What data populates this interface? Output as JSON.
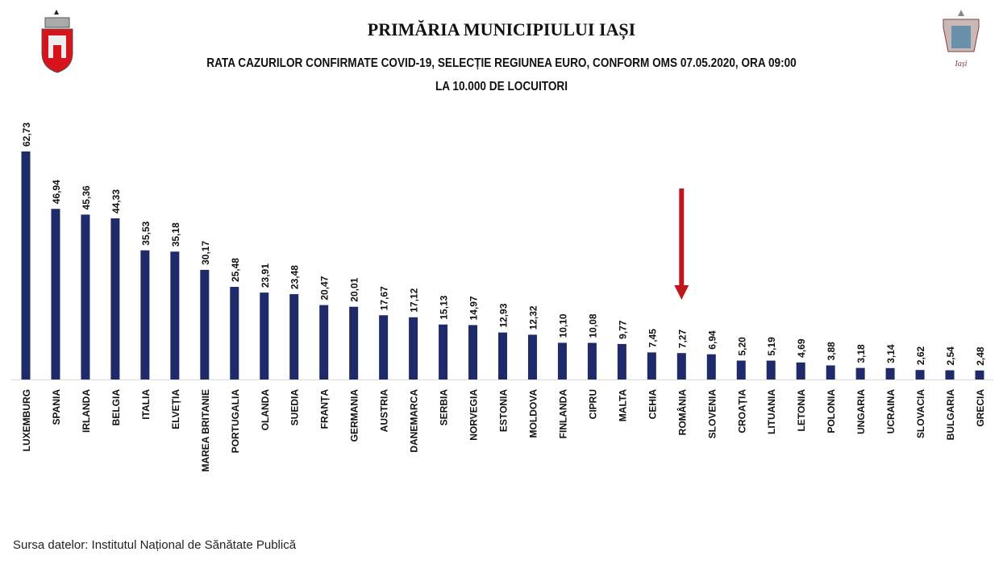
{
  "header": {
    "title": "PRIMĂRIA MUNICIPIULUI IAȘI",
    "logo_right_text": "Iași"
  },
  "chart_data": {
    "type": "bar",
    "title": "RATA CAZURILOR CONFIRMATE COVID-19, SELECȚIE REGIUNEA EURO, CONFORM OMS 07.05.2020, ORA 09:00",
    "subtitle": "LA 10.000 DE LOCUITORI",
    "xlabel": "",
    "ylabel": "",
    "ylim": [
      0,
      62.73
    ],
    "grid": false,
    "highlight": "ROMÂNIA",
    "bar_color": "#1f2a6b",
    "arrow_color": "#c0151b",
    "categories": [
      "LUXEMBURG",
      "SPANIA",
      "IRLANDA",
      "BELGIA",
      "ITALIA",
      "ELVEȚIA",
      "MAREA BRITANIE",
      "PORTUGALIA",
      "OLANDA",
      "SUEDIA",
      "FRANȚA",
      "GERMANIA",
      "AUSTRIA",
      "DANEMARCA",
      "SERBIA",
      "NORVEGIA",
      "ESTONIA",
      "MOLDOVA",
      "FINLANDA",
      "CIPRU",
      "MALTA",
      "CEHIA",
      "ROMÂNIA",
      "SLOVENIA",
      "CROAȚIA",
      "LITUANIA",
      "LETONIA",
      "POLONIA",
      "UNGARIA",
      "UCRAINA",
      "SLOVACIA",
      "BULGARIA",
      "GRECIA"
    ],
    "values": [
      62.73,
      46.94,
      45.36,
      44.33,
      35.53,
      35.18,
      30.17,
      25.48,
      23.91,
      23.48,
      20.47,
      20.01,
      17.67,
      17.12,
      15.13,
      14.97,
      12.93,
      12.32,
      10.1,
      10.08,
      9.77,
      7.45,
      7.27,
      6.94,
      5.2,
      5.19,
      4.69,
      3.88,
      3.18,
      3.14,
      2.62,
      2.54,
      2.48
    ],
    "value_labels": [
      "62,73",
      "46,94",
      "45,36",
      "44,33",
      "35,53",
      "35,18",
      "30,17",
      "25,48",
      "23,91",
      "23,48",
      "20,47",
      "20,01",
      "17,67",
      "17,12",
      "15,13",
      "14,97",
      "12,93",
      "12,32",
      "10,10",
      "10,08",
      "9,77",
      "7,45",
      "7,27",
      "6,94",
      "5,20",
      "5,19",
      "4,69",
      "3,88",
      "3,18",
      "3,14",
      "2,62",
      "2,54",
      "2,48"
    ]
  },
  "footer": {
    "source": "Sursa datelor: Institutul Național de Sănătate Publică"
  }
}
